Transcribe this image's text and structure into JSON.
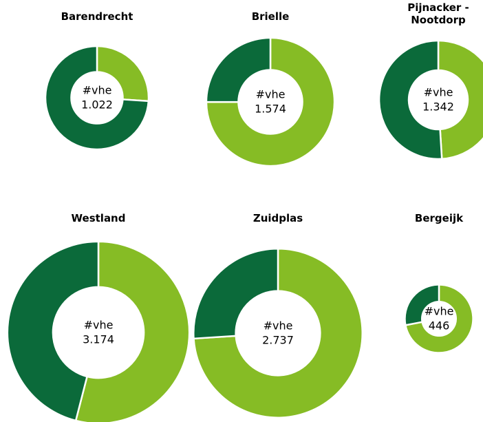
{
  "chart_data": [
    {
      "type": "donut",
      "title": "Barendrecht",
      "center_label": "#vhe",
      "total": 1022,
      "total_label": "1.022",
      "values": [
        266,
        756
      ],
      "colors": [
        "#86bc25",
        "#0b6a3a"
      ]
    },
    {
      "type": "donut",
      "title": "Brielle",
      "center_label": "#vhe",
      "total": 1574,
      "total_label": "1.574",
      "values": [
        1180,
        394
      ],
      "colors": [
        "#86bc25",
        "#0b6a3a"
      ]
    },
    {
      "type": "donut",
      "title": "Pijnacker - Nootdorp",
      "center_label": "#vhe",
      "total": 1342,
      "total_label": "1.342",
      "values": [
        658,
        684
      ],
      "colors": [
        "#86bc25",
        "#0b6a3a"
      ]
    },
    {
      "type": "donut",
      "title": "Westland",
      "center_label": "#vhe",
      "total": 3174,
      "total_label": "3.174",
      "values": [
        1714,
        1460
      ],
      "colors": [
        "#86bc25",
        "#0b6a3a"
      ]
    },
    {
      "type": "donut",
      "title": "Zuidplas",
      "center_label": "#vhe",
      "total": 2737,
      "total_label": "2.737",
      "values": [
        2025,
        712
      ],
      "colors": [
        "#86bc25",
        "#0b6a3a"
      ]
    },
    {
      "type": "donut",
      "title": "Bergeijk",
      "center_label": "#vhe",
      "total": 446,
      "total_label": "446",
      "values": [
        321,
        125
      ],
      "colors": [
        "#86bc25",
        "#0b6a3a"
      ]
    }
  ]
}
